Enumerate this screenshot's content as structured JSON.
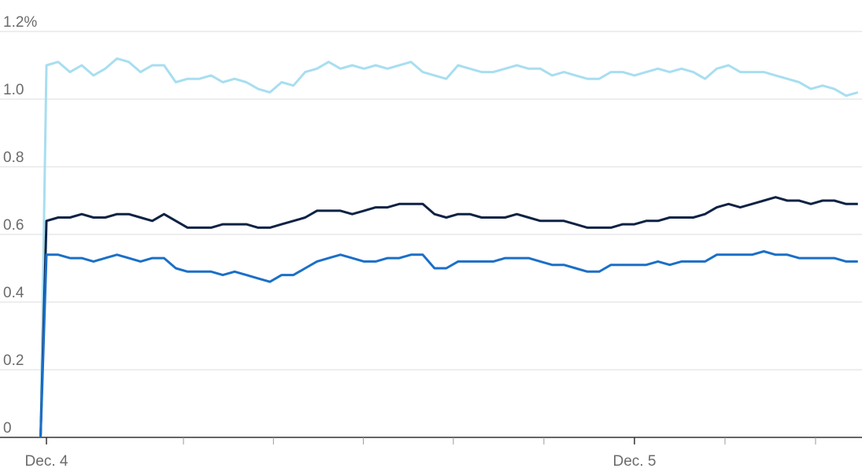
{
  "chart_data": {
    "type": "line",
    "x": [
      -1,
      0,
      2,
      4,
      6,
      8,
      10,
      12,
      14,
      16,
      18,
      20,
      22,
      24,
      26,
      28,
      30,
      32,
      34,
      36,
      38,
      40,
      42,
      44,
      46,
      48,
      50,
      52,
      54,
      56,
      58,
      60,
      62,
      64,
      66,
      68,
      70,
      72,
      74,
      76,
      78,
      80,
      82,
      84,
      86,
      88,
      90,
      92,
      94,
      96,
      98,
      100,
      102,
      104,
      106,
      108,
      110,
      112,
      114,
      116,
      118,
      120,
      122,
      124,
      126,
      128,
      130,
      132,
      134,
      136,
      138
    ],
    "series": [
      {
        "color": "#a8def0",
        "values": [
          0,
          1.1,
          1.11,
          1.08,
          1.1,
          1.07,
          1.09,
          1.12,
          1.11,
          1.08,
          1.1,
          1.1,
          1.05,
          1.06,
          1.06,
          1.07,
          1.05,
          1.06,
          1.05,
          1.03,
          1.02,
          1.05,
          1.04,
          1.08,
          1.09,
          1.11,
          1.09,
          1.1,
          1.09,
          1.1,
          1.09,
          1.1,
          1.11,
          1.08,
          1.07,
          1.06,
          1.1,
          1.09,
          1.08,
          1.08,
          1.09,
          1.1,
          1.09,
          1.09,
          1.07,
          1.08,
          1.07,
          1.06,
          1.06,
          1.08,
          1.08,
          1.07,
          1.08,
          1.09,
          1.08,
          1.09,
          1.08,
          1.06,
          1.09,
          1.1,
          1.08,
          1.08,
          1.08,
          1.07,
          1.06,
          1.05,
          1.03,
          1.04,
          1.03,
          1.01,
          1.02
        ]
      },
      {
        "color": "#0e2244",
        "values": [
          0,
          0.64,
          0.65,
          0.65,
          0.66,
          0.65,
          0.65,
          0.66,
          0.66,
          0.65,
          0.64,
          0.66,
          0.64,
          0.62,
          0.62,
          0.62,
          0.63,
          0.63,
          0.63,
          0.62,
          0.62,
          0.63,
          0.64,
          0.65,
          0.67,
          0.67,
          0.67,
          0.66,
          0.67,
          0.68,
          0.68,
          0.69,
          0.69,
          0.69,
          0.66,
          0.65,
          0.66,
          0.66,
          0.65,
          0.65,
          0.65,
          0.66,
          0.65,
          0.64,
          0.64,
          0.64,
          0.63,
          0.62,
          0.62,
          0.62,
          0.63,
          0.63,
          0.64,
          0.64,
          0.65,
          0.65,
          0.65,
          0.66,
          0.68,
          0.69,
          0.68,
          0.69,
          0.7,
          0.71,
          0.7,
          0.7,
          0.69,
          0.7,
          0.7,
          0.69,
          0.69
        ]
      },
      {
        "color": "#1b6fc8",
        "values": [
          0,
          0.54,
          0.54,
          0.53,
          0.53,
          0.52,
          0.53,
          0.54,
          0.53,
          0.52,
          0.53,
          0.53,
          0.5,
          0.49,
          0.49,
          0.49,
          0.48,
          0.49,
          0.48,
          0.47,
          0.46,
          0.48,
          0.48,
          0.5,
          0.52,
          0.53,
          0.54,
          0.53,
          0.52,
          0.52,
          0.53,
          0.53,
          0.54,
          0.54,
          0.5,
          0.5,
          0.52,
          0.52,
          0.52,
          0.52,
          0.53,
          0.53,
          0.53,
          0.52,
          0.51,
          0.51,
          0.5,
          0.49,
          0.49,
          0.51,
          0.51,
          0.51,
          0.51,
          0.52,
          0.51,
          0.52,
          0.52,
          0.52,
          0.54,
          0.54,
          0.54,
          0.54,
          0.55,
          0.54,
          0.54,
          0.53,
          0.53,
          0.53,
          0.53,
          0.52,
          0.52
        ]
      }
    ],
    "xlim": [
      -7.9,
      138.7
    ],
    "xticks": [
      {
        "value": 0,
        "label": "Dec. 4"
      },
      {
        "value": 100,
        "label": "Dec. 5"
      }
    ],
    "xminor_ticks": [
      23.3,
      38.6,
      53.9,
      69.2,
      84.6,
      115.4,
      130.8
    ],
    "ylim": [
      0,
      1.2
    ],
    "yticks": [
      0,
      0.2,
      0.4,
      {
        "value": 0.6,
        "label": "0.6"
      },
      0.8,
      {
        "value": 1,
        "label": "1.0"
      },
      {
        "value": 1.2,
        "label": "1.2%"
      }
    ],
    "grid": true
  }
}
